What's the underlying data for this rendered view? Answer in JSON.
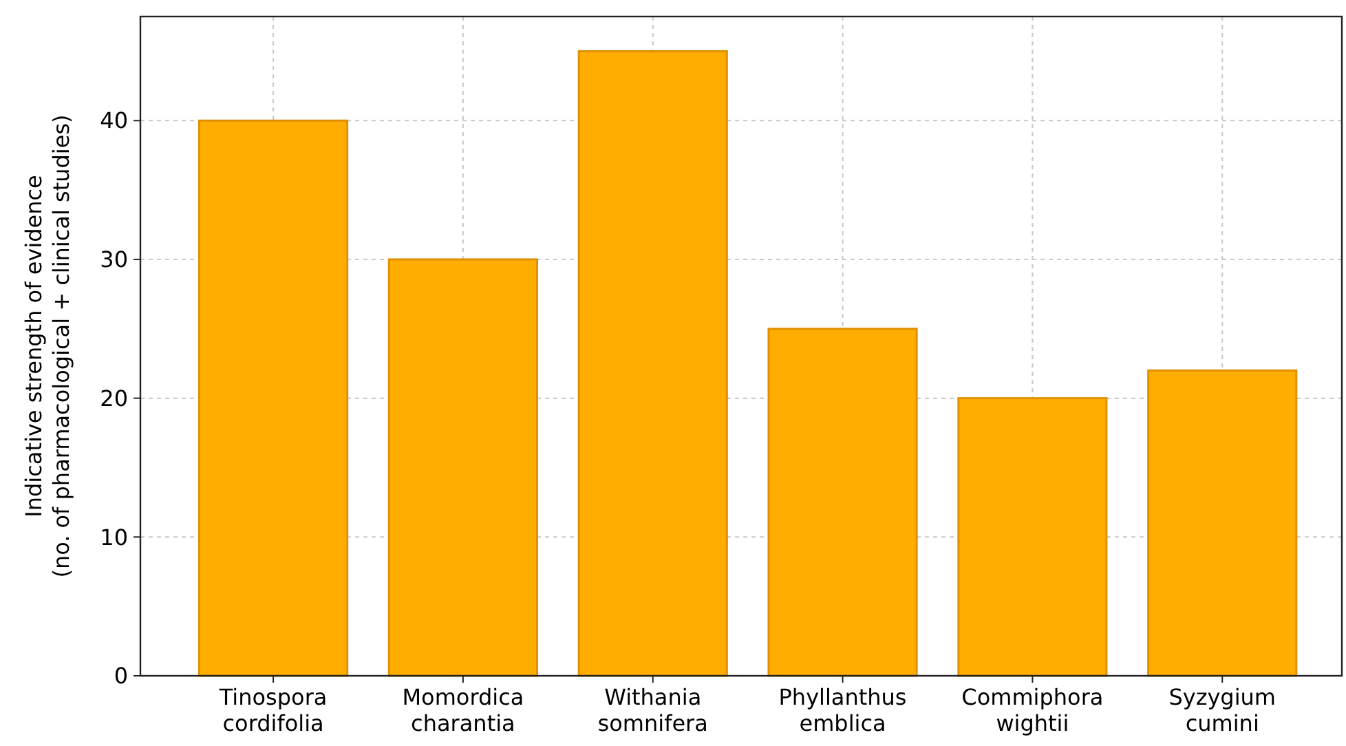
{
  "chart_data": {
    "type": "bar",
    "ylabel": "Indicative strength of evidence\n(no. of pharmacological + clinical studies)",
    "categories": [
      "Tinospora cordifolia",
      "Momordica charantia",
      "Withania somnifera",
      "Phyllanthus emblica",
      "Commiphora wightii",
      "Syzygium cumini"
    ],
    "values": [
      40,
      30,
      45,
      25,
      20,
      22
    ],
    "color": "#ffad00",
    "ylim": [
      0,
      47.5
    ],
    "yticks": [
      0,
      10,
      20,
      30,
      40
    ],
    "grid": true
  }
}
